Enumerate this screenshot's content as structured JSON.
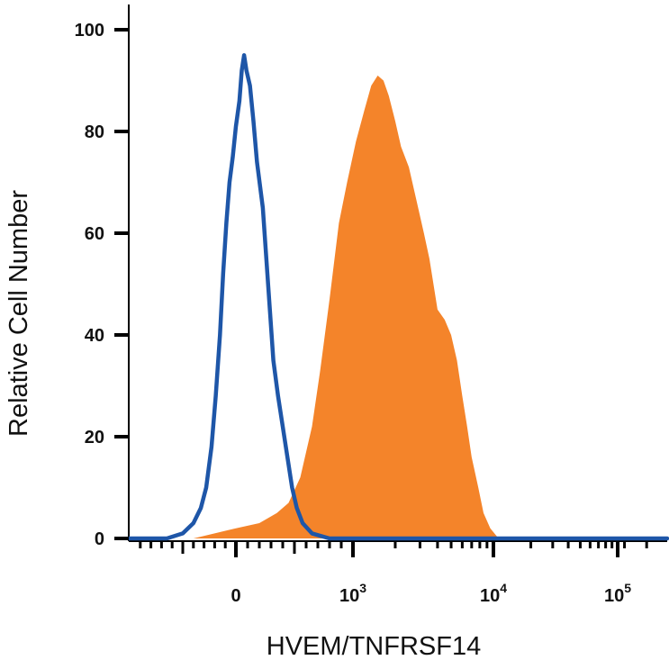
{
  "chart_data": {
    "type": "area",
    "title": "",
    "xlabel": "HVEM/TNFRSF14",
    "ylabel": "Relative Cell Number",
    "x_scale": "biexponential",
    "xlim": [
      -1000,
      200000
    ],
    "ylim": [
      0,
      100
    ],
    "yticks": [
      0,
      20,
      40,
      60,
      80,
      100
    ],
    "xticks": [
      {
        "value": 0,
        "label": "0"
      },
      {
        "value": 1000,
        "base": "10",
        "exp": "3"
      },
      {
        "value": 10000,
        "base": "10",
        "exp": "4"
      },
      {
        "value": 100000,
        "base": "10",
        "exp": "5"
      }
    ],
    "grid": false,
    "legend": "none",
    "series": [
      {
        "style": "filled",
        "color": "#f4842a",
        "points": [
          [
            -400,
            0
          ],
          [
            -200,
            1
          ],
          [
            0,
            2
          ],
          [
            200,
            3
          ],
          [
            350,
            5
          ],
          [
            450,
            7
          ],
          [
            550,
            12
          ],
          [
            650,
            22
          ],
          [
            720,
            33
          ],
          [
            800,
            47
          ],
          [
            880,
            62
          ],
          [
            950,
            70
          ],
          [
            1050,
            78
          ],
          [
            1200,
            84
          ],
          [
            1350,
            89
          ],
          [
            1500,
            91
          ],
          [
            1650,
            90
          ],
          [
            1800,
            87
          ],
          [
            2000,
            82
          ],
          [
            2200,
            77
          ],
          [
            2500,
            73
          ],
          [
            2800,
            67
          ],
          [
            3200,
            60
          ],
          [
            3500,
            55
          ],
          [
            4000,
            45
          ],
          [
            4500,
            43
          ],
          [
            5000,
            40
          ],
          [
            5500,
            35
          ],
          [
            6000,
            28
          ],
          [
            6500,
            22
          ],
          [
            7000,
            16
          ],
          [
            7800,
            10
          ],
          [
            8500,
            5
          ],
          [
            9500,
            2
          ],
          [
            11000,
            0
          ]
        ]
      },
      {
        "style": "outline",
        "color": "#1e56a8",
        "points": [
          [
            -650,
            0
          ],
          [
            -500,
            1
          ],
          [
            -400,
            3
          ],
          [
            -330,
            6
          ],
          [
            -280,
            10
          ],
          [
            -230,
            18
          ],
          [
            -190,
            28
          ],
          [
            -150,
            40
          ],
          [
            -120,
            52
          ],
          [
            -90,
            62
          ],
          [
            -60,
            70
          ],
          [
            -30,
            75
          ],
          [
            0,
            81
          ],
          [
            30,
            86
          ],
          [
            50,
            92
          ],
          [
            70,
            95
          ],
          [
            90,
            92
          ],
          [
            120,
            89
          ],
          [
            150,
            82
          ],
          [
            180,
            74
          ],
          [
            230,
            65
          ],
          [
            260,
            55
          ],
          [
            290,
            45
          ],
          [
            320,
            35
          ],
          [
            360,
            28
          ],
          [
            400,
            22
          ],
          [
            440,
            16
          ],
          [
            480,
            10
          ],
          [
            520,
            6
          ],
          [
            570,
            3
          ],
          [
            650,
            1
          ],
          [
            800,
            0
          ]
        ]
      }
    ]
  }
}
